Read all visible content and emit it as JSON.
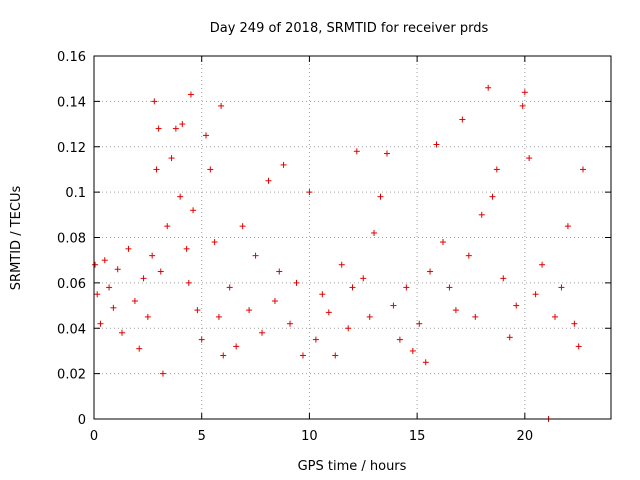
{
  "chart_data": {
    "type": "scatter",
    "title": "Day 249 of 2018, SRMTID for receiver prds",
    "xlabel": "GPS time / hours",
    "ylabel": "SRMTID / TECUs",
    "xlim": [
      0,
      24
    ],
    "ylim": [
      0,
      0.16
    ],
    "xticks": [
      "0",
      "5",
      "10",
      "15",
      "20"
    ],
    "yticks": [
      "0",
      "0.02",
      "0.04",
      "0.06",
      "0.08",
      "0.1",
      "0.12",
      "0.14",
      "0.16"
    ],
    "grid": true,
    "marker": "+",
    "color": "#e00000",
    "series": [
      {
        "name": "SRMTID",
        "x": [
          0.05,
          0.15,
          0.3,
          0.5,
          0.7,
          0.9,
          1.1,
          1.3,
          1.6,
          1.9,
          2.1,
          2.3,
          2.5,
          2.7,
          2.8,
          2.9,
          3.0,
          3.1,
          3.2,
          3.4,
          3.6,
          3.8,
          4.0,
          4.1,
          4.3,
          4.4,
          4.5,
          4.6,
          4.8,
          5.0,
          5.2,
          5.4,
          5.6,
          5.8,
          5.9,
          6.0,
          6.3,
          6.6,
          6.9,
          7.2,
          7.5,
          7.8,
          8.1,
          8.4,
          8.6,
          8.8,
          9.1,
          9.4,
          9.7,
          10.0,
          10.3,
          10.6,
          10.9,
          11.2,
          11.5,
          11.8,
          12.0,
          12.2,
          12.5,
          12.8,
          13.0,
          13.3,
          13.6,
          13.9,
          14.2,
          14.5,
          14.8,
          15.1,
          15.4,
          15.6,
          15.9,
          16.2,
          16.5,
          16.8,
          17.1,
          17.4,
          17.7,
          18.0,
          18.3,
          18.5,
          18.7,
          19.0,
          19.3,
          19.6,
          19.9,
          20.0,
          20.2,
          20.5,
          20.8,
          21.1,
          21.4,
          21.7,
          22.0,
          22.3,
          22.5,
          22.7
        ],
        "y": [
          0.068,
          0.055,
          0.042,
          0.07,
          0.058,
          0.049,
          0.066,
          0.038,
          0.075,
          0.052,
          0.031,
          0.062,
          0.045,
          0.072,
          0.14,
          0.11,
          0.128,
          0.065,
          0.02,
          0.085,
          0.115,
          0.128,
          0.098,
          0.13,
          0.075,
          0.06,
          0.143,
          0.092,
          0.048,
          0.035,
          0.125,
          0.11,
          0.078,
          0.045,
          0.138,
          0.028,
          0.058,
          0.032,
          0.085,
          0.048,
          0.072,
          0.038,
          0.105,
          0.052,
          0.065,
          0.112,
          0.042,
          0.06,
          0.028,
          0.1,
          0.035,
          0.055,
          0.047,
          0.028,
          0.068,
          0.04,
          0.058,
          0.118,
          0.062,
          0.045,
          0.082,
          0.098,
          0.117,
          0.05,
          0.035,
          0.058,
          0.03,
          0.042,
          0.025,
          0.065,
          0.121,
          0.078,
          0.058,
          0.048,
          0.132,
          0.072,
          0.045,
          0.09,
          0.146,
          0.098,
          0.11,
          0.062,
          0.036,
          0.05,
          0.138,
          0.144,
          0.115,
          0.055,
          0.068,
          0.0,
          0.045,
          0.058,
          0.085,
          0.042,
          0.032,
          0.11
        ]
      }
    ]
  }
}
